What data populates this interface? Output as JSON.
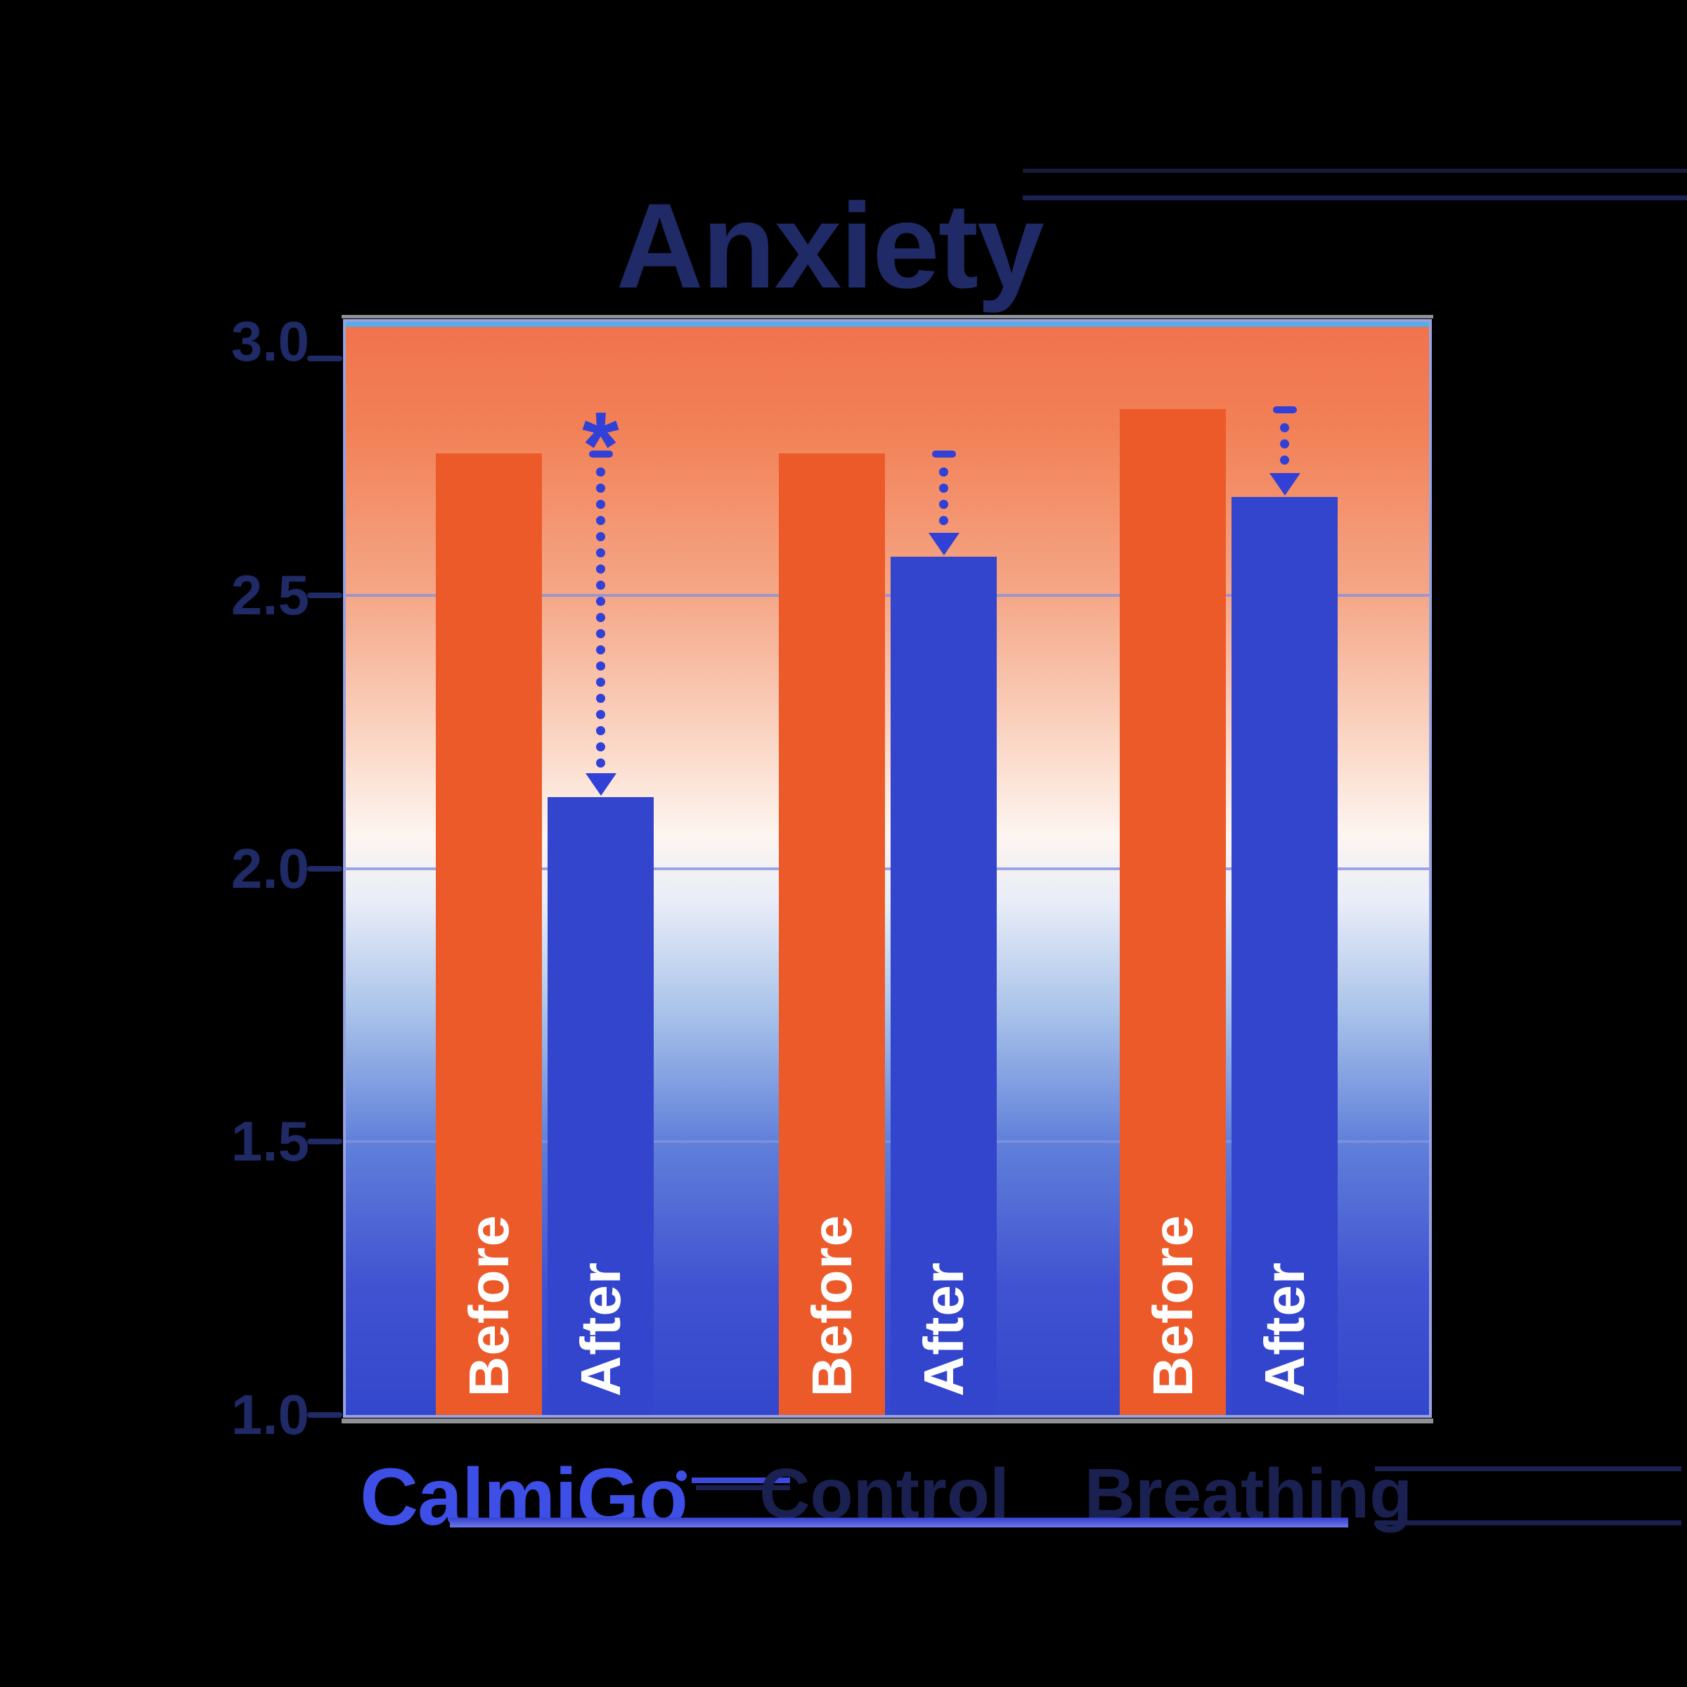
{
  "chart_data": {
    "type": "bar",
    "title": "Anxiety",
    "categories": [
      "CalmiGo",
      "Control",
      "Breathing"
    ],
    "series": [
      {
        "name": "Before",
        "values": [
          2.76,
          2.76,
          2.84
        ],
        "color": "#ec5a2a"
      },
      {
        "name": "After",
        "values": [
          2.13,
          2.57,
          2.68
        ],
        "color": "#3345cd"
      }
    ],
    "ylim": [
      1.0,
      3.0
    ],
    "yticks": [
      "3.0",
      "2.5",
      "2.0",
      "1.5",
      "1.0"
    ],
    "gridlines_at": [
      2.5,
      2.0,
      1.5
    ],
    "xlabel": "",
    "ylabel": "",
    "legend_position": "none",
    "bar_label_style": "series name written vertically in white inside each bar",
    "annotations": {
      "arrows_note": "dotted arrow with top cap at Before level pointing down to After bar top in each group",
      "significance": [
        {
          "category": "CalmiGo",
          "marker": "*"
        },
        {
          "category": "Control",
          "marker": ""
        },
        {
          "category": "Breathing",
          "marker": ""
        }
      ]
    },
    "background_gradient": [
      "#f1724c",
      "#f5a787",
      "#fdf5f0",
      "#aac4ea",
      "#5f7fd9",
      "#3347cd"
    ]
  },
  "colors": {
    "before_bar": "#ec5a2a",
    "after_bar": "#3345cd",
    "arrow": "#3140d6",
    "axis_text": "#1f2a66",
    "category_text": "#1a2150",
    "logo_blue": "#3d4fe6",
    "gridline": "#8292e0",
    "plot_border": "#98a2e0",
    "plot_top_accent": "#54ace9"
  }
}
